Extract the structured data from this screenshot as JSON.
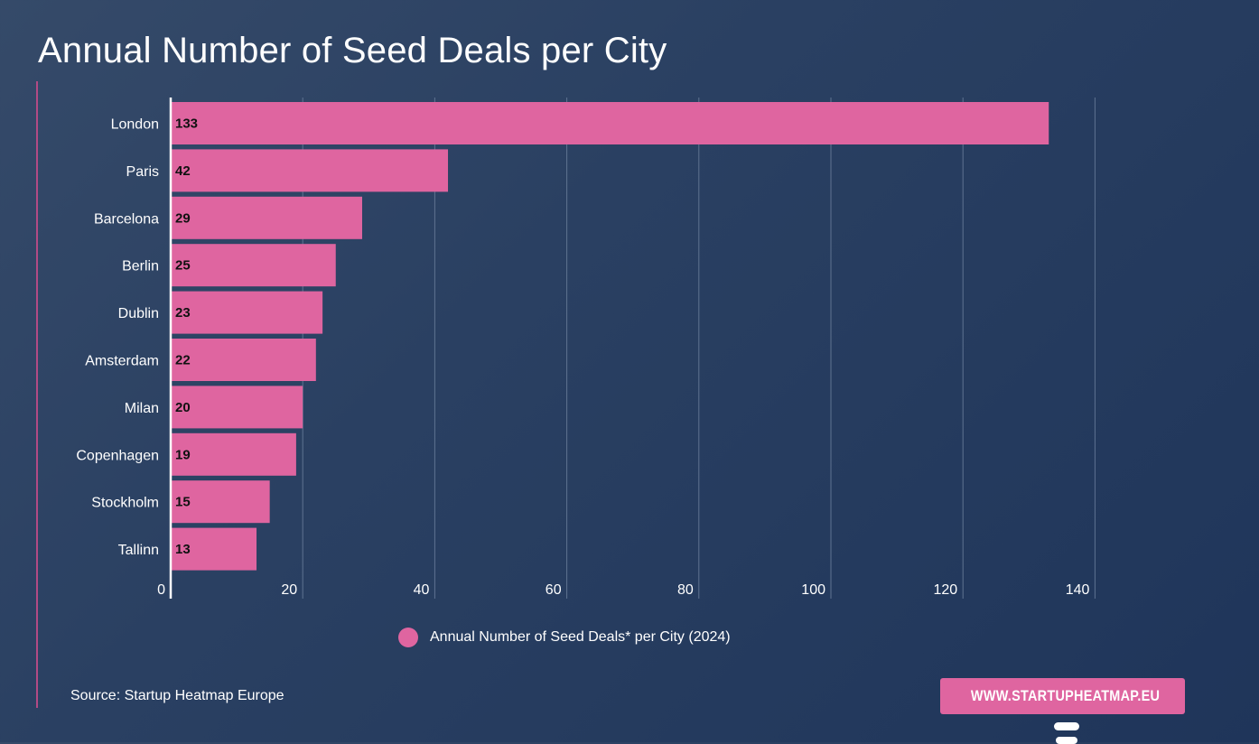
{
  "title": "Annual Number of Seed Deals per City",
  "chart_data": {
    "type": "bar",
    "orientation": "horizontal",
    "title": "Annual Number of Seed Deals per City",
    "categories": [
      "London",
      "Paris",
      "Barcelona",
      "Berlin",
      "Dublin",
      "Amsterdam",
      "Milan",
      "Copenhagen",
      "Stockholm",
      "Tallinn"
    ],
    "series": [
      {
        "name": "Annual Number of Seed Deals* per City (2024)",
        "values": [
          133,
          42,
          29,
          25,
          23,
          22,
          20,
          19,
          15,
          13
        ]
      }
    ],
    "xlim": [
      0,
      140
    ],
    "xticks": [
      0,
      20,
      40,
      60,
      80,
      100,
      120,
      140
    ],
    "xlabel": "",
    "ylabel": "",
    "grid": true,
    "legend": "bottom-center",
    "data_labels": true,
    "colors": {
      "bar": "#df65a0",
      "grid": "#5f7391",
      "axis": "#ffffff"
    }
  },
  "legend_label": "Annual Number of Seed Deals* per City (2024)",
  "source": "Source: Startup Heatmap Europe",
  "cta": {
    "label": "WWW.STARTUPHEATMAP.EU",
    "icon": "cursor-icon"
  }
}
